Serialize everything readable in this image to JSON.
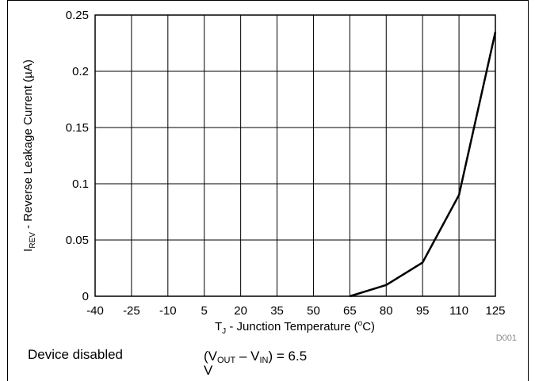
{
  "chart_data": {
    "type": "line",
    "title": "",
    "xlabel": {
      "main": "T",
      "sub": "J",
      "rest": " - Junction Temperature (",
      "sup": "o",
      "unit": "C)"
    },
    "ylabel": {
      "main": "I",
      "sub": "REV",
      "rest": " - Reverse Leakage Current (µA)"
    },
    "xlim": [
      -40,
      125
    ],
    "ylim": [
      0,
      0.25
    ],
    "x_ticks": [
      "-40",
      "-25",
      "-10",
      "5",
      "20",
      "35",
      "50",
      "65",
      "80",
      "95",
      "110",
      "125"
    ],
    "y_ticks": [
      "0",
      "0.05",
      "0.1",
      "0.15",
      "0.2",
      "0.25"
    ],
    "grid": true,
    "series": [
      {
        "color": "#000000",
        "x": [
          65,
          80,
          95,
          110,
          125
        ],
        "y": [
          0,
          0.01,
          0.03,
          0.09,
          0.235
        ]
      }
    ],
    "watermark": "D001"
  },
  "notes": {
    "condition_label": "Device disabled",
    "voltage_prefix": "(V",
    "voltage_sub_out": "OUT",
    "voltage_mid": " – V",
    "voltage_sub_in": "IN",
    "voltage_suffix": ") = 6.5",
    "voltage_unit": "V"
  }
}
